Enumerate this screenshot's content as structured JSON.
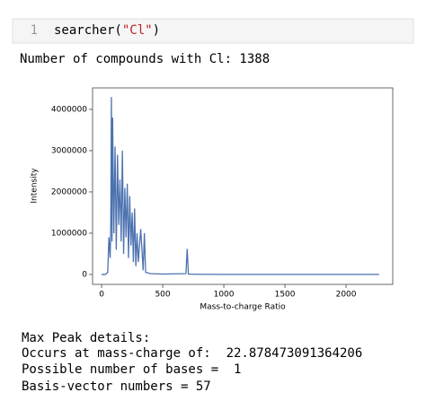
{
  "code": {
    "line_number": "1",
    "tokens": [
      "searcher(",
      "\"Cl\"",
      ")"
    ]
  },
  "output": "Number of compounds with Cl: 1388",
  "chart_data": {
    "type": "line",
    "xlabel": "Mass-to-charge Ratio",
    "ylabel": "Intensity",
    "x": [
      0,
      30,
      50,
      60,
      70,
      75,
      80,
      85,
      90,
      100,
      110,
      120,
      130,
      140,
      150,
      160,
      170,
      180,
      190,
      200,
      210,
      220,
      230,
      240,
      250,
      260,
      270,
      280,
      290,
      300,
      320,
      340,
      350,
      360,
      400,
      500,
      690,
      700,
      710,
      800,
      1000,
      1500,
      2000,
      2270
    ],
    "series": [
      {
        "color": "#4c72b0",
        "values": [
          0,
          0,
          50000,
          900000,
          400000,
          1200000,
          4300000,
          800000,
          3800000,
          1000000,
          3100000,
          600000,
          2900000,
          1200000,
          2300000,
          800000,
          3000000,
          500000,
          2100000,
          900000,
          2200000,
          400000,
          1900000,
          700000,
          1500000,
          300000,
          1600000,
          200000,
          1000000,
          300000,
          1100000,
          100000,
          1000000,
          50000,
          20000,
          10000,
          20000,
          620000,
          10000,
          5000,
          2000,
          1000,
          1000,
          1000
        ]
      }
    ],
    "xlim": [
      -74,
      2382
    ],
    "ylim": [
      -240000,
      4520000
    ],
    "xticks": [
      0,
      500,
      1000,
      1500,
      2000
    ],
    "yticks": [
      0,
      1000000,
      2000000,
      3000000,
      4000000
    ]
  },
  "details": [
    "Max Peak details:",
    "Occurs at mass-charge of:  22.878473091364206",
    "Possible number of bases =  1",
    "Basis-vector numbers = 57"
  ]
}
